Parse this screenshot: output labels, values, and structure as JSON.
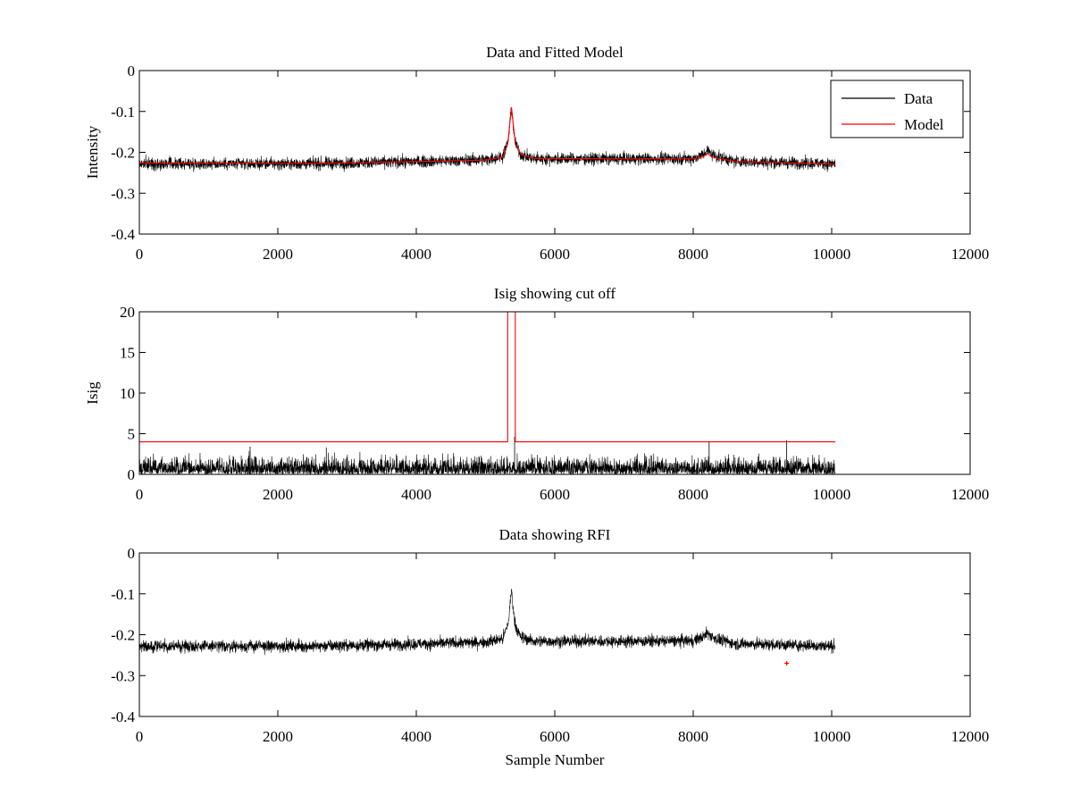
{
  "chart_data": [
    {
      "id": "p1",
      "type": "line",
      "title": "Data and Fitted Model",
      "xlabel": "",
      "ylabel": "Intensity",
      "xlim": [
        0,
        12000
      ],
      "ylim": [
        -0.4,
        0
      ],
      "xticks": [
        0,
        2000,
        4000,
        6000,
        8000,
        10000,
        12000
      ],
      "yticks": [
        0,
        -0.1,
        -0.2,
        -0.3,
        -0.4
      ],
      "xtick_labels": [
        "0",
        "2000",
        "4000",
        "6000",
        "8000",
        "10000",
        "12000"
      ],
      "ytick_labels": [
        "0",
        "-0.1",
        "-0.2",
        "-0.3",
        "-0.4"
      ],
      "legend": {
        "location": "top-right",
        "entries": [
          {
            "label": "Data",
            "color": "#000000"
          },
          {
            "label": "Model",
            "color": "#ff0000"
          }
        ]
      },
      "series": [
        {
          "name": "Data",
          "color": "#000000",
          "kind": "noisy",
          "x_range": [
            0,
            10050
          ],
          "noise_amplitude": 0.013,
          "baseline": [
            [
              0,
              -0.228
            ],
            [
              2500,
              -0.228
            ],
            [
              4200,
              -0.222
            ],
            [
              5000,
              -0.218
            ],
            [
              5250,
              -0.21
            ],
            [
              5330,
              -0.17
            ],
            [
              5375,
              -0.09
            ],
            [
              5420,
              -0.17
            ],
            [
              5500,
              -0.205
            ],
            [
              5700,
              -0.216
            ],
            [
              7000,
              -0.216
            ],
            [
              8000,
              -0.215
            ],
            [
              8150,
              -0.205
            ],
            [
              8200,
              -0.195
            ],
            [
              8300,
              -0.208
            ],
            [
              8600,
              -0.222
            ],
            [
              10050,
              -0.228
            ]
          ]
        },
        {
          "name": "Model",
          "color": "#ff0000",
          "kind": "line",
          "points": [
            [
              0,
              -0.226
            ],
            [
              2500,
              -0.227
            ],
            [
              4200,
              -0.222
            ],
            [
              5000,
              -0.219
            ],
            [
              5250,
              -0.212
            ],
            [
              5320,
              -0.18
            ],
            [
              5375,
              -0.09
            ],
            [
              5430,
              -0.18
            ],
            [
              5520,
              -0.206
            ],
            [
              5700,
              -0.215
            ],
            [
              7000,
              -0.216
            ],
            [
              8000,
              -0.216
            ],
            [
              8150,
              -0.21
            ],
            [
              8200,
              -0.203
            ],
            [
              8280,
              -0.212
            ],
            [
              8600,
              -0.222
            ],
            [
              10050,
              -0.229
            ]
          ]
        }
      ]
    },
    {
      "id": "p2",
      "type": "line",
      "title": "Isig showing cut off",
      "xlabel": "",
      "ylabel": "Isig",
      "xlim": [
        0,
        12000
      ],
      "ylim": [
        0,
        20
      ],
      "xticks": [
        0,
        2000,
        4000,
        6000,
        8000,
        10000,
        12000
      ],
      "yticks": [
        0,
        5,
        10,
        15,
        20
      ],
      "xtick_labels": [
        "0",
        "2000",
        "4000",
        "6000",
        "8000",
        "10000",
        "12000"
      ],
      "ytick_labels": [
        "0",
        "5",
        "10",
        "15",
        "20"
      ],
      "series": [
        {
          "name": "Isig",
          "color": "#000000",
          "kind": "abs-noise",
          "x_range": [
            0,
            10050
          ],
          "scale": 0.95,
          "spikes": [
            [
              5420,
              4.6
            ],
            [
              8230,
              4.0
            ],
            [
              9350,
              4.2
            ],
            [
              2700,
              3.3
            ],
            [
              1600,
              3.4
            ]
          ]
        },
        {
          "name": "Cut off",
          "color": "#ff0000",
          "kind": "line",
          "points": [
            [
              0,
              4
            ],
            [
              5320,
              4
            ],
            [
              5320,
              20
            ],
            [
              5430,
              20
            ],
            [
              5430,
              4
            ],
            [
              10050,
              4
            ]
          ]
        }
      ]
    },
    {
      "id": "p3",
      "type": "line",
      "title": "Data showing RFI",
      "xlabel": "Sample Number",
      "ylabel": "",
      "xlim": [
        0,
        12000
      ],
      "ylim": [
        -0.4,
        0
      ],
      "xticks": [
        0,
        2000,
        4000,
        6000,
        8000,
        10000,
        12000
      ],
      "yticks": [
        0,
        -0.1,
        -0.2,
        -0.3,
        -0.4
      ],
      "xtick_labels": [
        "0",
        "2000",
        "4000",
        "6000",
        "8000",
        "10000",
        "12000"
      ],
      "ytick_labels": [
        "0",
        "-0.1",
        "-0.2",
        "-0.3",
        "-0.4"
      ],
      "series": [
        {
          "name": "Data",
          "color": "#000000",
          "kind": "noisy",
          "x_range": [
            0,
            10050
          ],
          "noise_amplitude": 0.013,
          "baseline": [
            [
              0,
              -0.228
            ],
            [
              2500,
              -0.228
            ],
            [
              4200,
              -0.222
            ],
            [
              5000,
              -0.218
            ],
            [
              5250,
              -0.21
            ],
            [
              5330,
              -0.17
            ],
            [
              5375,
              -0.09
            ],
            [
              5420,
              -0.17
            ],
            [
              5500,
              -0.205
            ],
            [
              5700,
              -0.216
            ],
            [
              7000,
              -0.216
            ],
            [
              8000,
              -0.215
            ],
            [
              8150,
              -0.205
            ],
            [
              8200,
              -0.195
            ],
            [
              8300,
              -0.208
            ],
            [
              8600,
              -0.222
            ],
            [
              10050,
              -0.228
            ]
          ]
        },
        {
          "name": "RFI",
          "color": "#ff0000",
          "kind": "marker",
          "points": [
            [
              9350,
              -0.27
            ]
          ]
        }
      ]
    }
  ]
}
